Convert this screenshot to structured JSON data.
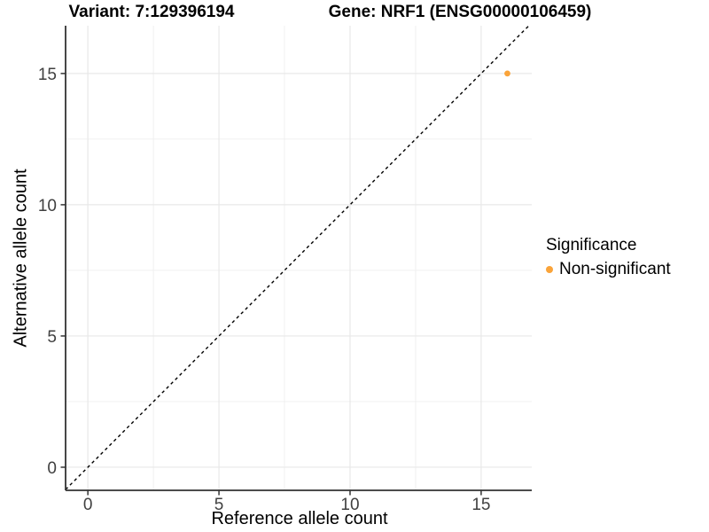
{
  "header": {
    "variant_title": "Variant: 7:129396194",
    "gene_title": "Gene: NRF1 (ENSG00000106459)"
  },
  "chart_data": {
    "type": "scatter",
    "title_left": "Variant: 7:129396194",
    "title_right": "Gene: NRF1 (ENSG00000106459)",
    "xlabel": "Reference allele count",
    "ylabel": "Alternative allele count",
    "xlim": [
      -0.85,
      16.93
    ],
    "ylim": [
      -0.88,
      16.82
    ],
    "x_ticks": [
      0,
      5,
      10,
      15
    ],
    "y_ticks": [
      0,
      5,
      10,
      15
    ],
    "x_minor_gridlines": [
      2.5,
      7.5,
      12.5
    ],
    "y_minor_gridlines": [
      2.5,
      7.5,
      12.5
    ],
    "grid": true,
    "points": [
      {
        "x": 16,
        "y": 15,
        "series": "Non-significant"
      }
    ],
    "reference_line": {
      "kind": "identity",
      "slope": 1,
      "intercept": 0,
      "style": "dashed"
    },
    "legend": {
      "title": "Significance",
      "position": "right",
      "entries": [
        {
          "label": "Non-significant",
          "color": "#FAA43A"
        }
      ]
    },
    "colors": {
      "point": "#FAA43A",
      "major_grid": "#E8E8E8",
      "minor_grid": "#F0F0F0",
      "axis_line": "#333333",
      "tick_label": "#404040",
      "reference_line": "#000000"
    }
  }
}
